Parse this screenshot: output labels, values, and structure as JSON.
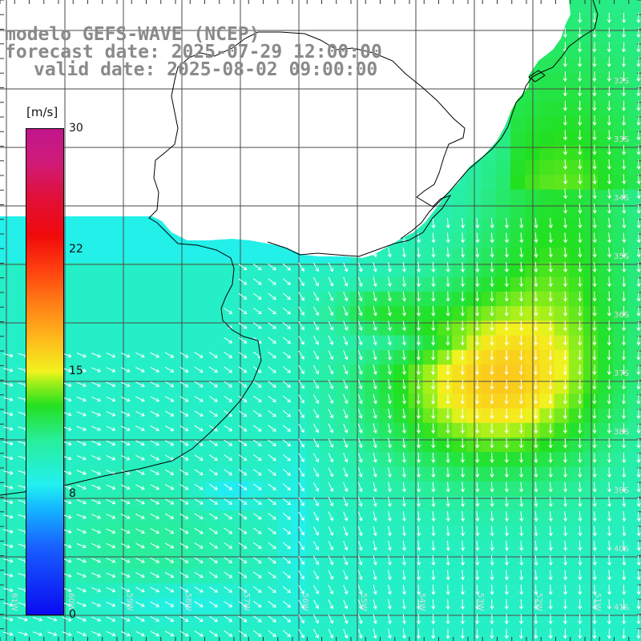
{
  "title": {
    "line1": "modelo GEFS-WAVE (NCEP)",
    "line2": "forecast date: 2025-07-29 12:00:00",
    "line3": "valid date: 2025-08-02 09:00:00"
  },
  "colorbar": {
    "unit": "[m/s]",
    "min": 0,
    "max": 30,
    "ticks": [
      "30",
      "22",
      "15",
      "8",
      "0"
    ],
    "tick_values": [
      30,
      22,
      15,
      8,
      0
    ]
  },
  "lon_labels": [
    "61W",
    "60W",
    "59W",
    "58W",
    "57W",
    "56W",
    "55W",
    "54W",
    "53W",
    "52W",
    "51W"
  ],
  "lat_labels": [
    "32S",
    "33S",
    "34S",
    "35S",
    "36S",
    "37S",
    "38S",
    "39S",
    "40S",
    "41S"
  ],
  "colors": {
    "land": "#ffffff",
    "coast": "#000000",
    "grid": "#555555",
    "arrows": "#ffffff",
    "title": "#8a8a8a"
  }
}
